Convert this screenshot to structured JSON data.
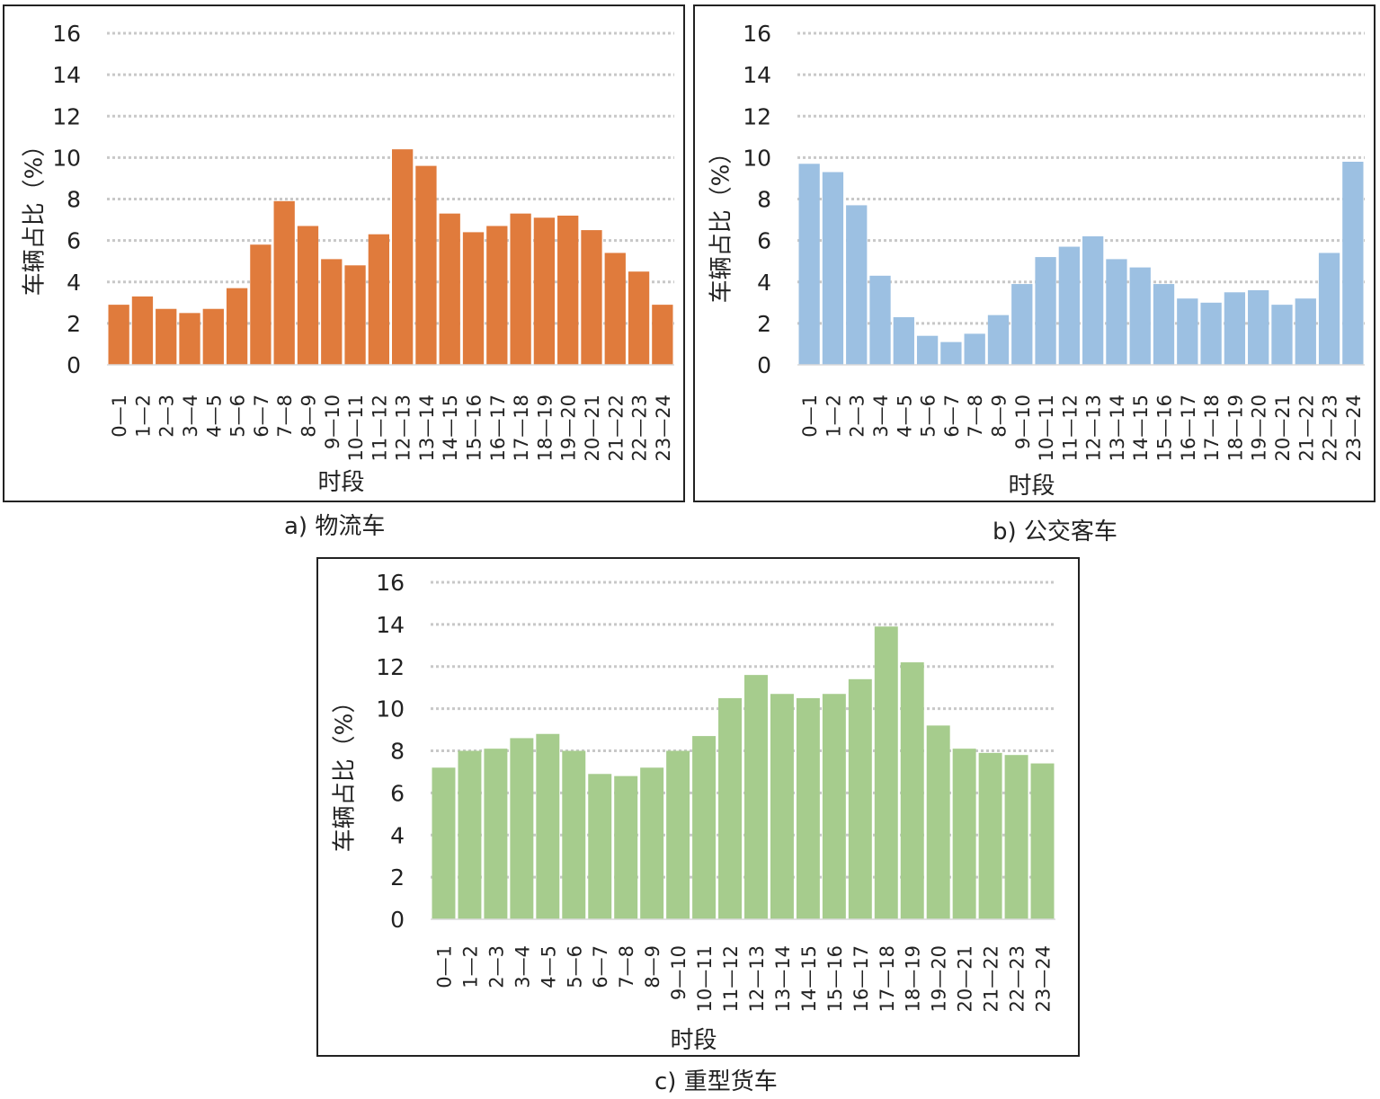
{
  "chart_data": [
    {
      "type": "bar",
      "caption": "a) 物流车",
      "color": "#E07B3C",
      "xlabel": "时段",
      "ylabel": "车辆占比（%）",
      "ylim": [
        0,
        16
      ],
      "yticks": [
        0,
        2,
        4,
        6,
        8,
        10,
        12,
        14,
        16
      ],
      "grid": true,
      "categories": [
        "0—1",
        "1—2",
        "2—3",
        "3—4",
        "4—5",
        "5—6",
        "6—7",
        "7—8",
        "8—9",
        "9—10",
        "10—11",
        "11—12",
        "12—13",
        "13—14",
        "14—15",
        "15—16",
        "16—17",
        "17—18",
        "18—19",
        "19—20",
        "20—21",
        "21—22",
        "22—23",
        "23—24"
      ],
      "values": [
        2.9,
        3.3,
        2.7,
        2.5,
        2.7,
        3.7,
        5.8,
        7.9,
        6.7,
        5.1,
        4.8,
        6.3,
        10.4,
        9.6,
        7.3,
        6.4,
        6.7,
        7.3,
        7.1,
        7.2,
        6.5,
        5.4,
        4.5,
        2.9
      ]
    },
    {
      "type": "bar",
      "caption": "b) 公交客车",
      "color": "#9CC0E2",
      "xlabel": "时段",
      "ylabel": "车辆占比（%）",
      "ylim": [
        0,
        16
      ],
      "yticks": [
        0,
        2,
        4,
        6,
        8,
        10,
        12,
        14,
        16
      ],
      "grid": true,
      "categories": [
        "0—1",
        "1—2",
        "2—3",
        "3—4",
        "4—5",
        "5—6",
        "6—7",
        "7—8",
        "8—9",
        "9—10",
        "10—11",
        "11—12",
        "12—13",
        "13—14",
        "14—15",
        "15—16",
        "16—17",
        "17—18",
        "18—19",
        "19—20",
        "20—21",
        "21—22",
        "22—23",
        "23—24"
      ],
      "values": [
        9.7,
        9.3,
        7.7,
        4.3,
        2.3,
        1.4,
        1.1,
        1.5,
        2.4,
        3.9,
        5.2,
        5.7,
        6.2,
        5.1,
        4.7,
        3.9,
        3.2,
        3.0,
        3.5,
        3.6,
        2.9,
        3.2,
        5.4,
        9.8
      ]
    },
    {
      "type": "bar",
      "caption": "c) 重型货车",
      "color": "#A6CC8D",
      "xlabel": "时段",
      "ylabel": "车辆占比（%）",
      "ylim": [
        0,
        16
      ],
      "yticks": [
        0,
        2,
        4,
        6,
        8,
        10,
        12,
        14,
        16
      ],
      "grid": true,
      "categories": [
        "0—1",
        "1—2",
        "2—3",
        "3—4",
        "4—5",
        "5—6",
        "6—7",
        "7—8",
        "8—9",
        "9—10",
        "10—11",
        "11—12",
        "12—13",
        "13—14",
        "14—15",
        "15—16",
        "16—17",
        "17—18",
        "18—19",
        "19—20",
        "20—21",
        "21—22",
        "22—23",
        "23—24"
      ],
      "values": [
        7.2,
        8.0,
        8.1,
        8.6,
        8.8,
        8.0,
        6.9,
        6.8,
        7.2,
        8.0,
        8.7,
        10.5,
        11.6,
        10.7,
        10.5,
        10.7,
        11.4,
        13.9,
        12.2,
        9.2,
        8.1,
        7.9,
        7.8,
        7.4
      ]
    }
  ]
}
